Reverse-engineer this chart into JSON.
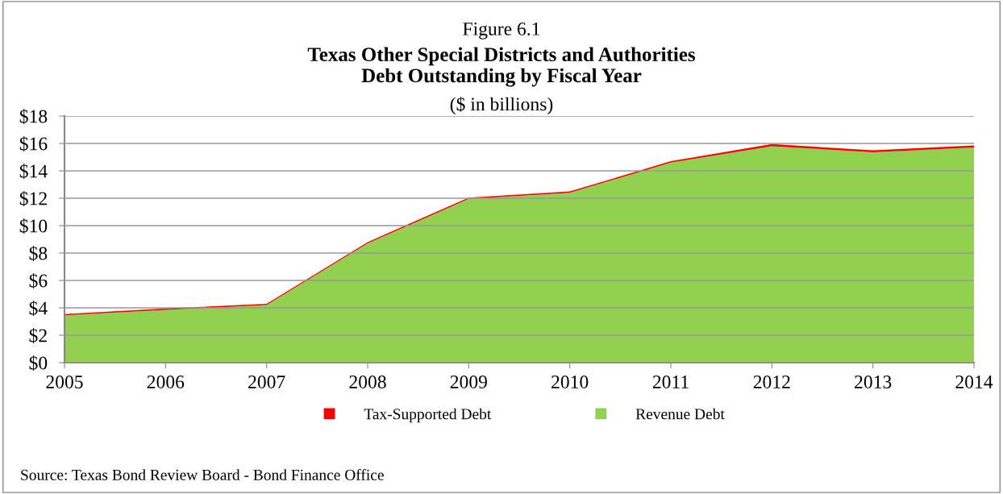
{
  "chart_data": {
    "type": "area",
    "stacked": true,
    "title": "Texas Other Special Districts and Authorities\nDebt Outstanding by Fiscal Year",
    "subtitle": "($ in billions)",
    "annotations": [
      "Figure 6.1",
      "Source: Texas Bond Review Board - Bond Finance Office"
    ],
    "categories": [
      "2005",
      "2006",
      "2007",
      "2008",
      "2009",
      "2010",
      "2011",
      "2012",
      "2013",
      "2014"
    ],
    "series": [
      {
        "name": "Revenue Debt",
        "color": "#92d050",
        "values": [
          3.45,
          3.85,
          4.2,
          8.7,
          11.95,
          12.4,
          14.6,
          15.8,
          15.35,
          15.7
        ]
      },
      {
        "name": "Tax-Supported Debt",
        "color": "#ff0000",
        "values": [
          0.1,
          0.1,
          0.1,
          0.1,
          0.1,
          0.1,
          0.1,
          0.15,
          0.15,
          0.15
        ]
      }
    ],
    "ylim": [
      0,
      18
    ],
    "yticks": [
      {
        "value": 0,
        "label": "$0"
      },
      {
        "value": 2,
        "label": "$2"
      },
      {
        "value": 4,
        "label": "$4"
      },
      {
        "value": 6,
        "label": "$6"
      },
      {
        "value": 8,
        "label": "$8"
      },
      {
        "value": 10,
        "label": "$10"
      },
      {
        "value": 12,
        "label": "$12"
      },
      {
        "value": 14,
        "label": "$14"
      },
      {
        "value": 16,
        "label": "$16"
      },
      {
        "value": 18,
        "label": "$18"
      }
    ],
    "grid": "y",
    "legend": "bottom"
  }
}
